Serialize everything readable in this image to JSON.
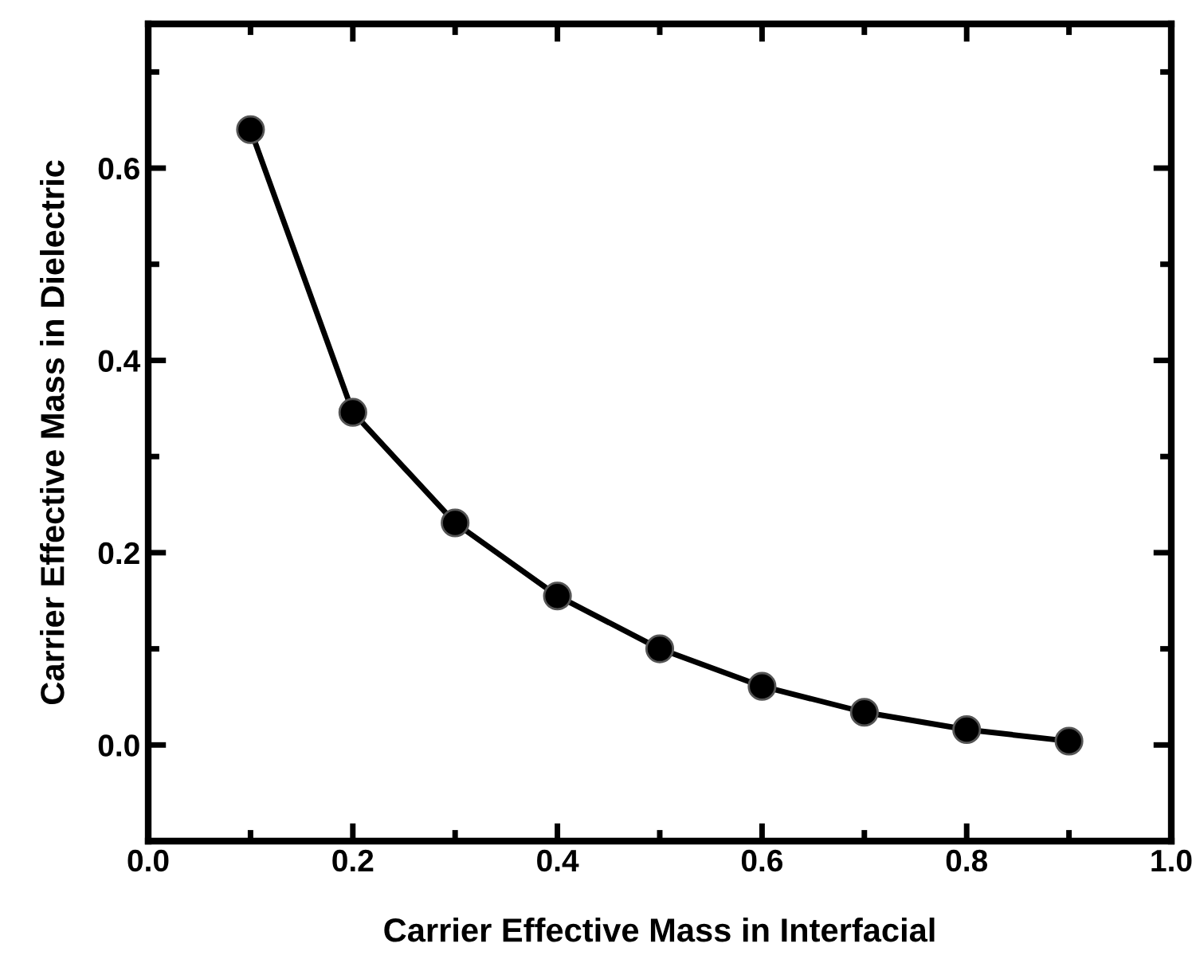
{
  "chart_data": {
    "type": "line",
    "xlabel": "Carrier Effective Mass in Interfacial",
    "ylabel": "Carrier Effective Mass in Dielectric",
    "x": [
      0.1,
      0.2,
      0.3,
      0.4,
      0.5,
      0.6,
      0.7,
      0.8,
      0.9
    ],
    "series": [
      {
        "color": "#000000",
        "values": [
          0.64,
          0.346,
          0.231,
          0.155,
          0.1,
          0.061,
          0.034,
          0.016,
          0.004
        ]
      }
    ],
    "xlim": [
      0.0,
      1.0
    ],
    "xticks": [
      {
        "value": 0.0,
        "label": "0.0"
      },
      {
        "value": 0.2,
        "label": "0.2"
      },
      {
        "value": 0.4,
        "label": "0.4"
      },
      {
        "value": 0.6,
        "label": "0.6"
      },
      {
        "value": 0.8,
        "label": "0.8"
      },
      {
        "value": 1.0,
        "label": "1.0"
      }
    ],
    "ylim": [
      -0.1,
      0.75
    ],
    "yticks": [
      {
        "value": 0.0,
        "label": "0.0"
      },
      {
        "value": 0.2,
        "label": "0.2"
      },
      {
        "value": 0.4,
        "label": "0.4"
      },
      {
        "value": 0.6,
        "label": "0.6"
      }
    ],
    "grid": false,
    "legend": false,
    "marker": "circle",
    "line_style": "solid"
  }
}
